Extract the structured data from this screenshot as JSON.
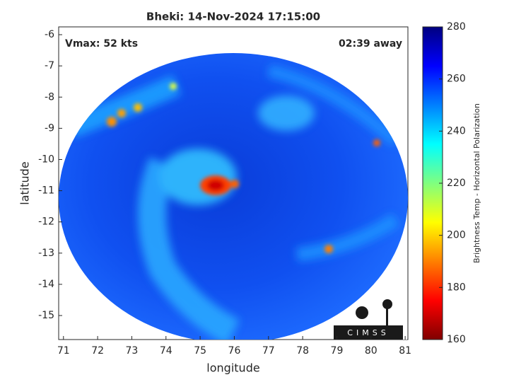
{
  "chart_data": {
    "type": "image",
    "title": "Bheki: 14-Nov-2024 17:15:00",
    "xlabel": "longitude",
    "ylabel": "latitude",
    "annotations": [
      "Vmax: 52 kts",
      "02:39 away"
    ],
    "logo": "CIMSS",
    "xlim": [
      70.86,
      81.08
    ],
    "xticks": [
      71,
      72,
      73,
      74,
      75,
      76,
      77,
      78,
      79,
      80,
      81
    ],
    "ylim": [
      -15.77,
      -5.75
    ],
    "yticks": [
      -15,
      -14,
      -13,
      -12,
      -11,
      -10,
      -9,
      -8,
      -7,
      -6
    ],
    "colorbar": {
      "label": "Brightness Temp - Horizontal Polarization",
      "colormap": "jet",
      "clim": [
        160,
        280
      ],
      "ticks": [
        160,
        180,
        200,
        220,
        240,
        260,
        280
      ]
    }
  }
}
